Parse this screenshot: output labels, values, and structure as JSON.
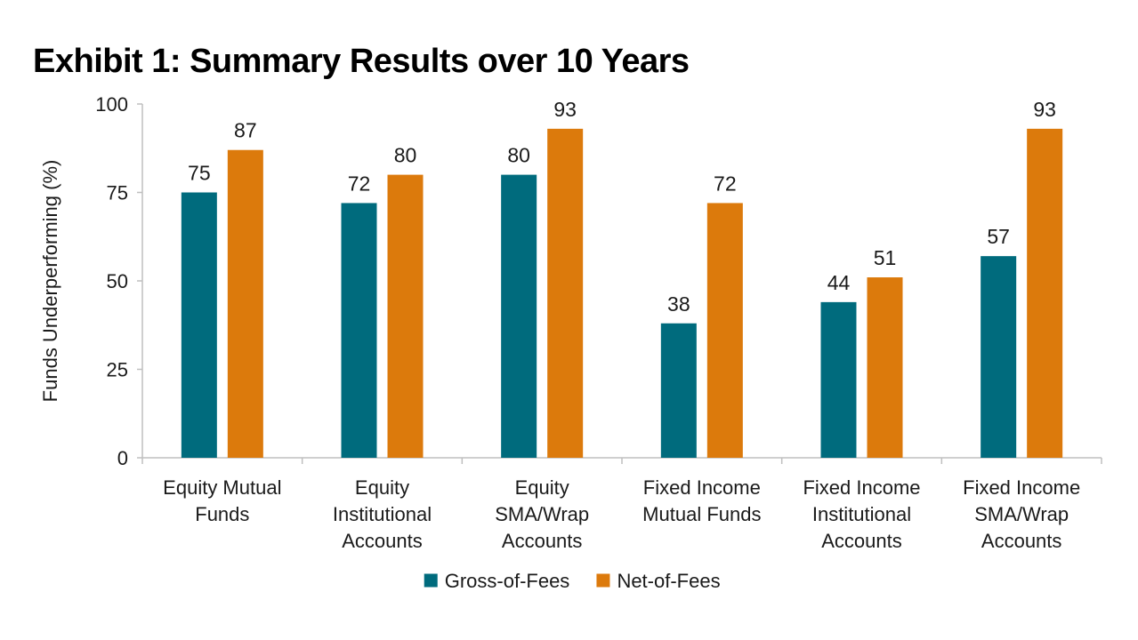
{
  "chart_data": {
    "type": "bar",
    "title": "Exhibit 1: Summary Results over 10 Years",
    "ylabel": "Funds Underperforming (%)",
    "xlabel": "",
    "ylim": [
      0,
      100
    ],
    "yticks": [
      0,
      25,
      50,
      75,
      100
    ],
    "grid": false,
    "legend_position": "bottom",
    "categories": [
      [
        "Equity Mutual",
        "Funds"
      ],
      [
        "Equity",
        "Institutional",
        "Accounts"
      ],
      [
        "Equity",
        "SMA/Wrap",
        "Accounts"
      ],
      [
        "Fixed Income",
        "Mutual Funds"
      ],
      [
        "Fixed Income",
        "Institutional",
        "Accounts"
      ],
      [
        "Fixed Income",
        "SMA/Wrap",
        "Accounts"
      ]
    ],
    "series": [
      {
        "name": "Gross-of-Fees",
        "color": "#006b7d",
        "values": [
          75,
          72,
          80,
          38,
          44,
          57
        ]
      },
      {
        "name": "Net-of-Fees",
        "color": "#dc7a0c",
        "values": [
          87,
          80,
          93,
          72,
          51,
          93
        ]
      }
    ]
  }
}
